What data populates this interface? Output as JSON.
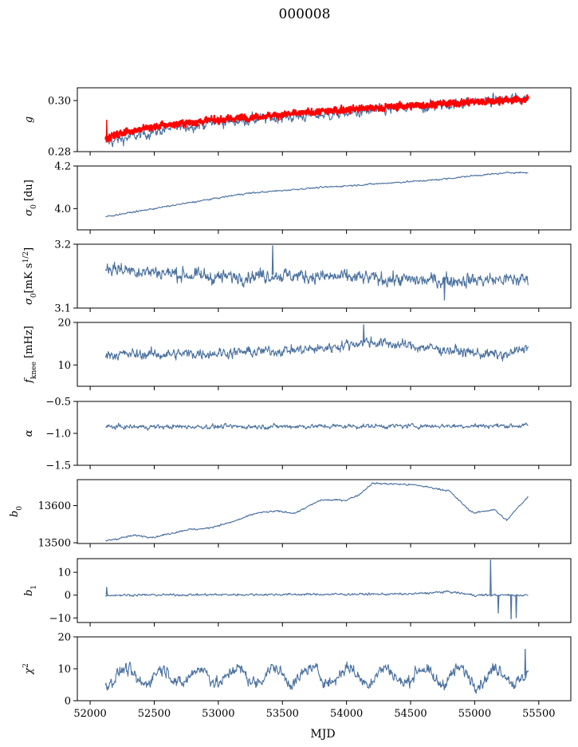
{
  "chart_data": {
    "type": "line",
    "title": "000008",
    "xlabel": "MJD",
    "xlim": [
      51900,
      55750
    ],
    "xticks": [
      52000,
      52500,
      53000,
      53500,
      54000,
      54500,
      55000,
      55500
    ],
    "x_start": 52120,
    "x_end": 55420,
    "colors": {
      "series": "#4c72a0",
      "overlay": "#ff0000"
    },
    "grid": false,
    "panels": [
      {
        "key": "g",
        "ylabel_base": "g",
        "ylabel_sub": "",
        "ylim": [
          0.28,
          0.305
        ],
        "yticks": [
          0.28,
          0.3
        ],
        "ytick_labels": [
          "0.28",
          "0.30"
        ],
        "series": [
          {
            "kind": "line",
            "trend": [
              [
                52120,
                0.2835
              ],
              [
                52300,
                0.2855
              ],
              [
                52600,
                0.289
              ],
              [
                53000,
                0.2915
              ],
              [
                53500,
                0.2935
              ],
              [
                54000,
                0.295
              ],
              [
                54500,
                0.297
              ],
              [
                55000,
                0.2995
              ],
              [
                55420,
                0.301
              ]
            ],
            "noise": 0.0018,
            "color_key": "series"
          },
          {
            "kind": "band",
            "trend": [
              [
                52120,
                0.2855
              ],
              [
                52300,
                0.288
              ],
              [
                52600,
                0.2905
              ],
              [
                53000,
                0.2925
              ],
              [
                53500,
                0.2945
              ],
              [
                54000,
                0.2965
              ],
              [
                54500,
                0.298
              ],
              [
                55000,
                0.2995
              ],
              [
                55420,
                0.3005
              ]
            ],
            "noise": 0.0008,
            "color_key": "overlay"
          }
        ],
        "spikes": [
          [
            52125,
            0.2925
          ]
        ]
      },
      {
        "key": "sigma0-du",
        "ylabel_base": "σ",
        "ylabel_sub": "0",
        "ylabel_unit": " [du]",
        "ylim": [
          3.9,
          4.2
        ],
        "yticks": [
          4.0,
          4.2
        ],
        "ytick_labels": [
          "4.0",
          "4.2"
        ],
        "series": [
          {
            "kind": "line",
            "trend": [
              [
                52120,
                3.962
              ],
              [
                52400,
                3.99
              ],
              [
                52800,
                4.03
              ],
              [
                53200,
                4.07
              ],
              [
                53700,
                4.095
              ],
              [
                54200,
                4.115
              ],
              [
                54700,
                4.135
              ],
              [
                55000,
                4.155
              ],
              [
                55300,
                4.17
              ],
              [
                55420,
                4.168
              ]
            ],
            "noise": 0.003,
            "color_key": "series"
          }
        ]
      },
      {
        "key": "sigma0-mks",
        "ylabel_base": "σ",
        "ylabel_sub": "0",
        "ylabel_unit": "[mK s",
        "ylabel_sup": "1/2",
        "ylim": [
          3.1,
          3.2
        ],
        "yticks": [
          3.1,
          3.2
        ],
        "ytick_labels": [
          "3.1",
          "3.2"
        ],
        "series": [
          {
            "kind": "line",
            "trend": [
              [
                52120,
                3.163
              ],
              [
                53000,
                3.148
              ],
              [
                53400,
                3.152
              ],
              [
                54000,
                3.148
              ],
              [
                54600,
                3.143
              ],
              [
                55420,
                3.145
              ]
            ],
            "noise": 0.009,
            "color_key": "series"
          }
        ],
        "spikes": [
          [
            53420,
            3.198
          ],
          [
            54760,
            3.112
          ]
        ]
      },
      {
        "key": "fknee",
        "ylabel_base": "f",
        "ylabel_sub": "knee",
        "ylabel_unit": " [mHz]",
        "ylim": [
          5,
          20
        ],
        "yticks": [
          10,
          20
        ],
        "ytick_labels": [
          "10",
          "20"
        ],
        "series": [
          {
            "kind": "line",
            "trend": [
              [
                52120,
                12.5
              ],
              [
                52600,
                12.5
              ],
              [
                53200,
                13.0
              ],
              [
                53800,
                13.8
              ],
              [
                54150,
                15.5
              ],
              [
                54500,
                14.5
              ],
              [
                55000,
                12.8
              ],
              [
                55250,
                12.2
              ],
              [
                55420,
                14.5
              ]
            ],
            "noise": 1.0,
            "color_key": "series"
          }
        ],
        "spikes": [
          [
            54130,
            19.5
          ]
        ]
      },
      {
        "key": "alpha",
        "ylabel_base": "α",
        "ylabel_sub": "",
        "ylim": [
          -1.5,
          -0.5
        ],
        "yticks": [
          -1.5,
          -1.0,
          -0.5
        ],
        "ytick_labels": [
          "−1.5",
          "−1.0",
          "−0.5"
        ],
        "series": [
          {
            "kind": "line",
            "trend": [
              [
                52120,
                -0.9
              ],
              [
                55420,
                -0.88
              ]
            ],
            "noise": 0.03,
            "color_key": "series"
          }
        ]
      },
      {
        "key": "b0",
        "ylabel_base": "b",
        "ylabel_sub": "0",
        "ylim": [
          13498,
          13670
        ],
        "yticks": [
          13500,
          13600
        ],
        "ytick_labels": [
          "13500",
          "13600"
        ],
        "series": [
          {
            "kind": "line",
            "trend": [
              [
                52120,
                13505
              ],
              [
                52350,
                13520
              ],
              [
                52500,
                13515
              ],
              [
                52750,
                13535
              ],
              [
                52900,
                13538
              ],
              [
                53100,
                13555
              ],
              [
                53300,
                13580
              ],
              [
                53450,
                13585
              ],
              [
                53600,
                13580
              ],
              [
                53800,
                13615
              ],
              [
                54000,
                13615
              ],
              [
                54100,
                13630
              ],
              [
                54200,
                13660
              ],
              [
                54400,
                13658
              ],
              [
                54550,
                13655
              ],
              [
                54800,
                13640
              ],
              [
                54950,
                13590
              ],
              [
                55000,
                13580
              ],
              [
                55150,
                13590
              ],
              [
                55250,
                13560
              ],
              [
                55350,
                13600
              ],
              [
                55420,
                13625
              ]
            ],
            "noise": 2.0,
            "color_key": "series"
          }
        ]
      },
      {
        "key": "b1",
        "ylabel_base": "b",
        "ylabel_sub": "1",
        "ylim": [
          -12,
          16
        ],
        "yticks": [
          -10,
          0,
          10
        ],
        "ytick_labels": [
          "−10",
          "0",
          "10"
        ],
        "series": [
          {
            "kind": "line",
            "trend": [
              [
                52120,
                0
              ],
              [
                54500,
                0.5
              ],
              [
                54800,
                1.5
              ],
              [
                55000,
                0
              ],
              [
                55420,
                0
              ]
            ],
            "noise": 0.4,
            "color_key": "series"
          }
        ],
        "spikes": [
          [
            52125,
            3.5
          ],
          [
            55120,
            15.5
          ],
          [
            55180,
            -8
          ],
          [
            55280,
            -10.5
          ],
          [
            55320,
            -10
          ]
        ]
      },
      {
        "key": "chi2",
        "ylabel_base": "χ",
        "ylabel_sup": "2",
        "ylabel_sub": "",
        "ylim": [
          0,
          20
        ],
        "yticks": [
          0,
          10,
          20
        ],
        "ytick_labels": [
          "0",
          "10",
          "20"
        ],
        "series": [
          {
            "kind": "line",
            "trend": [
              [
                52120,
                7.5
              ],
              [
                53000,
                7.8
              ],
              [
                54000,
                8.0
              ],
              [
                55000,
                7.6
              ],
              [
                55420,
                8.0
              ]
            ],
            "noise": 1.6,
            "color_key": "series",
            "oscillation": {
              "period": 290,
              "amplitude": 2.4
            }
          }
        ],
        "spikes": [
          [
            55390,
            16.2
          ]
        ]
      }
    ]
  }
}
